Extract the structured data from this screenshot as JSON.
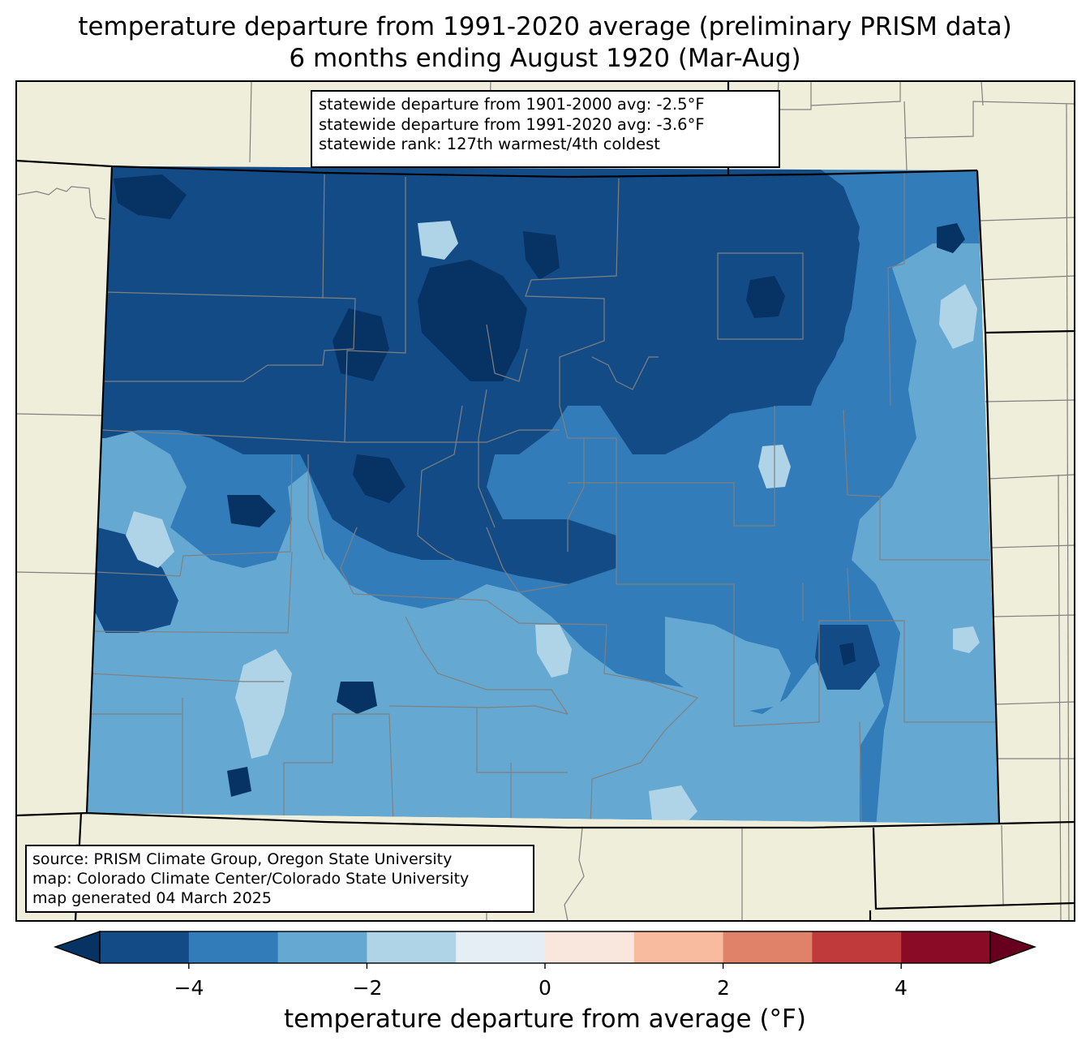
{
  "title": {
    "line1": "temperature departure from 1991-2020 average (preliminary PRISM data)",
    "line2": "6 months ending August 1920 (Mar-Aug)"
  },
  "stats": {
    "line1": "statewide departure from 1901-2000 avg: -2.5°F",
    "line2": "statewide departure from 1991-2020 avg: -3.6°F",
    "line3": "statewide rank: 127th warmest/4th coldest"
  },
  "credits": {
    "source": "source: PRISM Climate Group, Oregon State University",
    "map": "map: Colorado Climate Center/Colorado State University",
    "generated": "map generated 04 March 2025"
  },
  "colorbar": {
    "label": "temperature departure from average (°F)",
    "bins": [
      -5,
      -4,
      -3,
      -2,
      -1,
      0,
      1,
      2,
      3,
      4,
      5
    ],
    "colors": [
      "#134b87",
      "#317cb9",
      "#65a9d2",
      "#b0d4e7",
      "#e4eef4",
      "#f9e6dc",
      "#f8bba0",
      "#e0816a",
      "#c0393b",
      "#8a0b25"
    ],
    "under_color": "#063264",
    "over_color": "#67001f",
    "ticks": [
      "−4",
      "−2",
      "0",
      "2",
      "4"
    ]
  },
  "map": {
    "background": "#efeedb",
    "county_line_color": "#808080",
    "state_line_color": "#000000",
    "departure_colors": {
      "le_minus5": "#063264",
      "minus5_minus4": "#134b87",
      "minus4_minus3": "#317cb9",
      "minus3_minus2": "#65a9d2",
      "minus2_minus1": "#b0d4e7"
    }
  }
}
